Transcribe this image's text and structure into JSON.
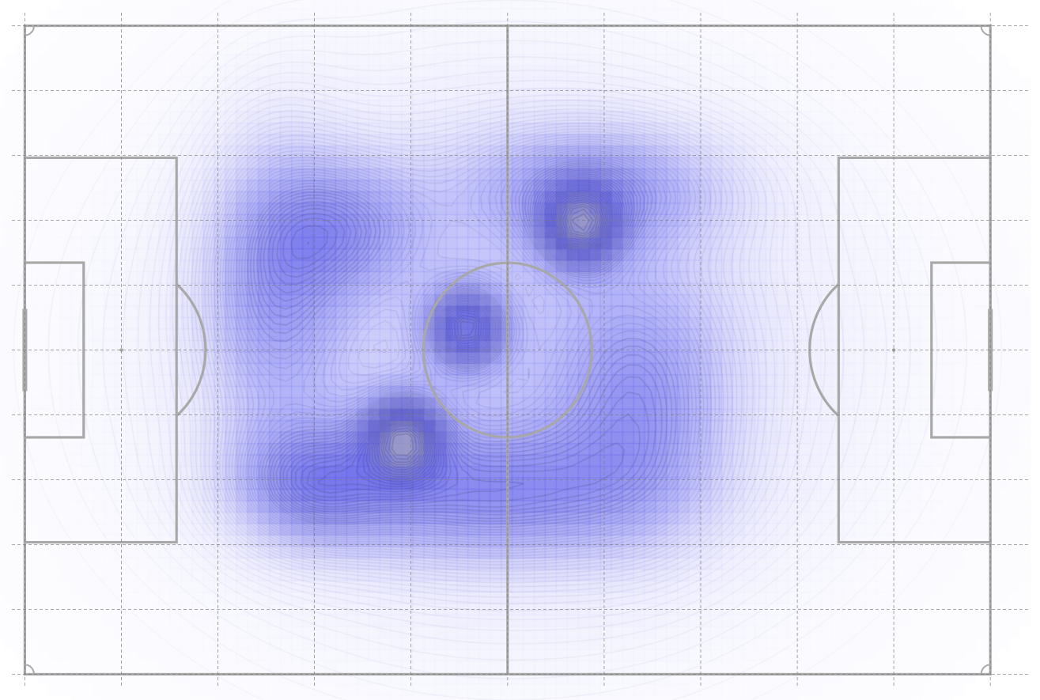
{
  "colors": {
    "background": "#ffffff",
    "pitch_line": "#a8a8a8",
    "grid_line": "#7a7a7a",
    "heat_light": "#e8e8ff",
    "heat_mid": "#7474f2",
    "heat_strong": "#5252e6",
    "heat_core": "#9090c4",
    "contour_line": "#3a3a86",
    "contour_core": "#4a4a80"
  },
  "icons": {
    "center_spot": "dot",
    "penalty_spot": "dot"
  },
  "chart_data": {
    "type": "heatmap",
    "subtype": "football-pitch-kde",
    "pitch": {
      "length": 105,
      "width": 68
    },
    "xlim": [
      -2.7,
      110.4
    ],
    "ylim": [
      -2.7,
      70.7
    ],
    "grid": true,
    "grid_x": [
      0,
      10.5,
      21,
      31.5,
      42,
      52.5,
      63,
      73.5,
      84,
      94.5,
      105
    ],
    "grid_y": [
      0,
      6.8,
      13.6,
      20.4,
      27.2,
      34,
      40.8,
      47.6,
      54.4,
      61.2,
      68
    ],
    "density_peaks": [
      {
        "x": 48.0,
        "y": 36.3,
        "weight": 1.0
      },
      {
        "x": 41.2,
        "y": 25.1,
        "weight": 0.95
      },
      {
        "x": 60.4,
        "y": 46.6,
        "weight": 0.85
      }
    ],
    "density_regions": [
      {
        "x": 27.0,
        "y": 41.0,
        "sx": 5.5,
        "sy": 11.0,
        "weight": 0.72
      },
      {
        "x": 50.0,
        "y": 19.0,
        "sx": 13.0,
        "sy": 5.0,
        "weight": 0.78
      },
      {
        "x": 62.0,
        "y": 51.0,
        "sx": 10.0,
        "sy": 4.5,
        "weight": 0.72
      },
      {
        "x": 31.0,
        "y": 20.0,
        "sx": 6.0,
        "sy": 4.5,
        "weight": 0.7
      },
      {
        "x": 67.0,
        "y": 29.0,
        "sx": 6.5,
        "sy": 9.0,
        "weight": 0.62
      },
      {
        "x": 35.0,
        "y": 47.0,
        "sx": 6.0,
        "sy": 5.0,
        "weight": 0.62
      },
      {
        "x": 52.5,
        "y": 34.0,
        "sx": 28.0,
        "sy": 22.0,
        "weight": 0.68
      }
    ],
    "contour_levels": 60
  }
}
